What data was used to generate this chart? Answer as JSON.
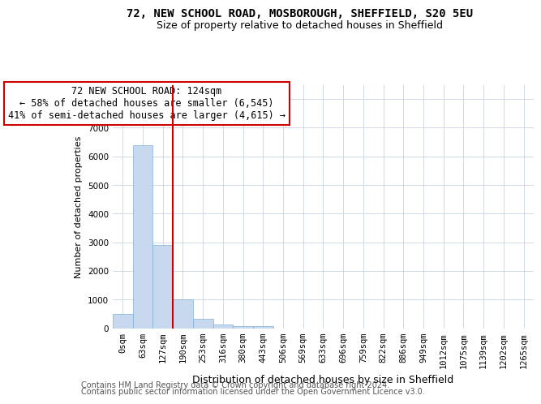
{
  "title": "72, NEW SCHOOL ROAD, MOSBOROUGH, SHEFFIELD, S20 5EU",
  "subtitle": "Size of property relative to detached houses in Sheffield",
  "xlabel": "Distribution of detached houses by size in Sheffield",
  "ylabel": "Number of detached properties",
  "footnote1": "Contains HM Land Registry data © Crown copyright and database right 2024.",
  "footnote2": "Contains public sector information licensed under the Open Government Licence v3.0.",
  "bar_color": "#c8d9ef",
  "bar_edge_color": "#7fafd4",
  "categories": [
    "0sqm",
    "63sqm",
    "127sqm",
    "190sqm",
    "253sqm",
    "316sqm",
    "380sqm",
    "443sqm",
    "506sqm",
    "569sqm",
    "633sqm",
    "696sqm",
    "759sqm",
    "822sqm",
    "886sqm",
    "949sqm",
    "1012sqm",
    "1075sqm",
    "1139sqm",
    "1202sqm",
    "1265sqm"
  ],
  "values": [
    500,
    6400,
    2900,
    1000,
    320,
    130,
    80,
    60,
    0,
    0,
    0,
    0,
    0,
    0,
    0,
    0,
    0,
    0,
    0,
    0,
    0
  ],
  "red_line_x": 2.5,
  "ylim": [
    0,
    8500
  ],
  "yticks": [
    0,
    1000,
    2000,
    3000,
    4000,
    5000,
    6000,
    7000,
    8000
  ],
  "annotation_text": "72 NEW SCHOOL ROAD: 124sqm\n← 58% of detached houses are smaller (6,545)\n41% of semi-detached houses are larger (4,615) →",
  "annotation_box_color": "#ffffff",
  "annotation_box_edge_color": "#cc0000",
  "annotation_text_color": "#000000",
  "red_line_color": "#cc0000",
  "grid_color": "#d0d8e8",
  "background_color": "#ffffff",
  "title_fontsize": 10,
  "subtitle_fontsize": 9,
  "ylabel_fontsize": 8,
  "xlabel_fontsize": 9,
  "tick_fontsize": 7.5,
  "annotation_fontsize": 8.5,
  "footnote_fontsize": 7
}
